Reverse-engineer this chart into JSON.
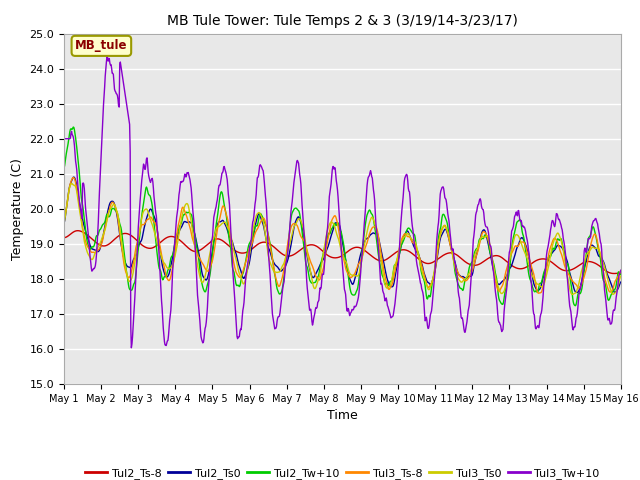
{
  "title": "MB Tule Tower: Tule Temps 2 & 3 (3/19/14-3/23/17)",
  "xlabel": "Time",
  "ylabel": "Temperature (C)",
  "ylim": [
    15.0,
    25.0
  ],
  "yticks": [
    15.0,
    16.0,
    17.0,
    18.0,
    19.0,
    20.0,
    21.0,
    22.0,
    23.0,
    24.0,
    25.0
  ],
  "xtick_labels": [
    "May 1",
    "May 2",
    "May 3",
    "May 4",
    "May 5",
    "May 6",
    "May 7",
    "May 8",
    "May 9",
    "May 10",
    "May 11",
    "May 12",
    "May 13",
    "May 14",
    "May 15",
    "May 16"
  ],
  "annotation_text": "MB_tule",
  "annotation_color": "#8B0000",
  "annotation_bg": "#FFFFCC",
  "annotation_border": "#999900",
  "series_colors": {
    "Tul2_Ts-8": "#cc0000",
    "Tul2_Ts0": "#000099",
    "Tul2_Tw+10": "#00cc00",
    "Tul3_Ts-8": "#ff8800",
    "Tul3_Ts0": "#cccc00",
    "Tul3_Tw+10": "#8800cc"
  },
  "bg_color": "#e8e8e8",
  "grid_color": "#ffffff",
  "n_points": 960,
  "figsize": [
    6.4,
    4.8
  ],
  "dpi": 100
}
